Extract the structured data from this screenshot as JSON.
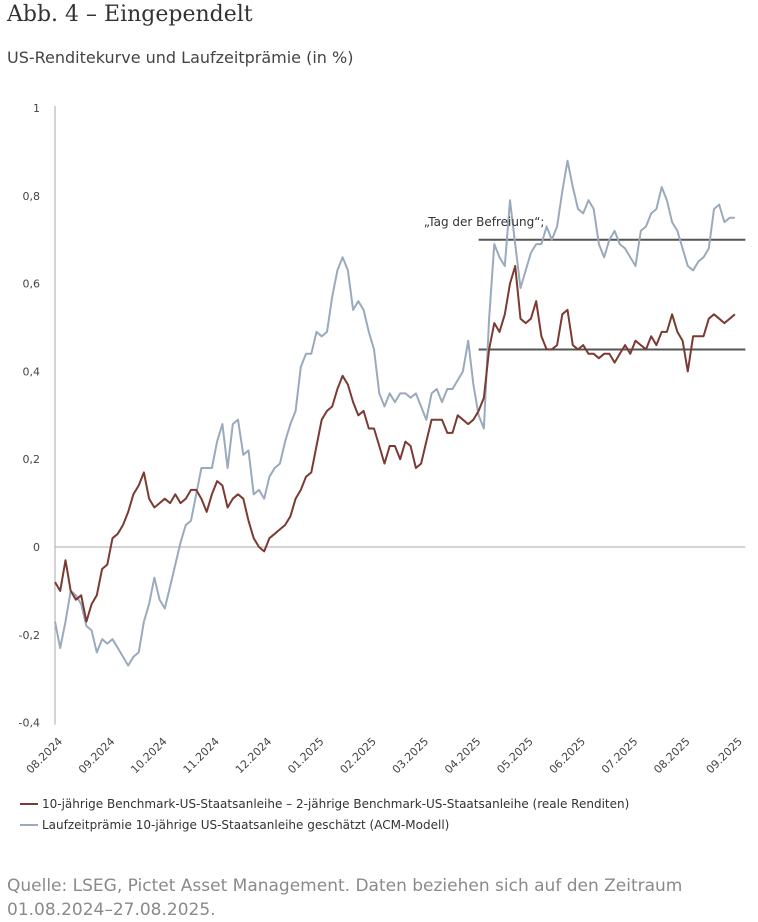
{
  "title": "Abb. 4 – Eingependelt",
  "subtitle": "US-Renditekurve und Laufzeitprämie (in %)",
  "source": "Quelle: LSEG, Pictet Asset Management. Daten beziehen sich auf den Zeitraum 01.08.2024–27.08.2025.",
  "chart_data": {
    "type": "line",
    "title": "US-Renditekurve und Laufzeitprämie (in %)",
    "xlabel": "",
    "ylabel": "",
    "ylim": [
      -0.4,
      1
    ],
    "yticks": [
      1,
      0.8,
      0.6,
      0.4,
      0.2,
      0,
      -0.2,
      -0.4
    ],
    "ytick_labels": [
      "1",
      "0,8",
      "0,6",
      "0,4",
      "0,2",
      "0",
      "-0,2",
      "-0,4"
    ],
    "x_unit": "months since 08.2024",
    "x_step": 0.1,
    "xlim": [
      0,
      13
    ],
    "xtick_labels": [
      "08.2024",
      "09.2024",
      "10.2024",
      "11.2024",
      "12.2024",
      "01.2025",
      "02.2025",
      "03.2025",
      "04.2025",
      "05.2025",
      "06.2025",
      "07.2025",
      "08.2025",
      "09.2025"
    ],
    "grid": false,
    "legend_position": "bottom",
    "series": [
      {
        "name": "10-jährige Benchmark-US-Staatsanleihe – 2-jährige Benchmark-US-Staatsanleihe (reale Renditen)",
        "color": "#7b3a32",
        "values": [
          -0.08,
          -0.1,
          -0.03,
          -0.1,
          -0.12,
          -0.11,
          -0.17,
          -0.13,
          -0.11,
          -0.05,
          -0.04,
          0.02,
          0.03,
          0.05,
          0.08,
          0.12,
          0.14,
          0.17,
          0.11,
          0.09,
          0.1,
          0.11,
          0.1,
          0.12,
          0.1,
          0.11,
          0.13,
          0.13,
          0.11,
          0.08,
          0.12,
          0.15,
          0.14,
          0.09,
          0.11,
          0.12,
          0.11,
          0.06,
          0.02,
          0.0,
          -0.01,
          0.02,
          0.03,
          0.04,
          0.05,
          0.07,
          0.11,
          0.13,
          0.16,
          0.17,
          0.23,
          0.29,
          0.31,
          0.32,
          0.36,
          0.39,
          0.37,
          0.33,
          0.3,
          0.31,
          0.27,
          0.27,
          0.23,
          0.19,
          0.23,
          0.23,
          0.2,
          0.24,
          0.23,
          0.18,
          0.19,
          0.24,
          0.29,
          0.29,
          0.29,
          0.26,
          0.26,
          0.3,
          0.29,
          0.28,
          0.29,
          0.31,
          0.34,
          0.45,
          0.51,
          0.49,
          0.53,
          0.6,
          0.64,
          0.52,
          0.51,
          0.52,
          0.56,
          0.48,
          0.45,
          0.45,
          0.46,
          0.53,
          0.54,
          0.46,
          0.45,
          0.46,
          0.44,
          0.44,
          0.43,
          0.44,
          0.44,
          0.42,
          0.44,
          0.46,
          0.44,
          0.47,
          0.46,
          0.45,
          0.48,
          0.46,
          0.49,
          0.49,
          0.53,
          0.49,
          0.47,
          0.4,
          0.48,
          0.48,
          0.48,
          0.52,
          0.53,
          0.52,
          0.51,
          0.52,
          0.53
        ]
      },
      {
        "name": "Laufzeitprämie 10-jährige US-Staatsanleihe geschätzt (ACM-Modell)",
        "color": "#9aaabd",
        "values": [
          -0.17,
          -0.23,
          -0.17,
          -0.1,
          -0.11,
          -0.13,
          -0.18,
          -0.19,
          -0.24,
          -0.21,
          -0.22,
          -0.21,
          -0.23,
          -0.25,
          -0.27,
          -0.25,
          -0.24,
          -0.17,
          -0.13,
          -0.07,
          -0.12,
          -0.14,
          -0.09,
          -0.04,
          0.01,
          0.05,
          0.06,
          0.12,
          0.18,
          0.18,
          0.18,
          0.24,
          0.28,
          0.18,
          0.28,
          0.29,
          0.21,
          0.22,
          0.12,
          0.13,
          0.11,
          0.16,
          0.18,
          0.19,
          0.24,
          0.28,
          0.31,
          0.41,
          0.44,
          0.44,
          0.49,
          0.48,
          0.49,
          0.57,
          0.63,
          0.66,
          0.63,
          0.54,
          0.56,
          0.54,
          0.49,
          0.45,
          0.35,
          0.32,
          0.35,
          0.33,
          0.35,
          0.35,
          0.34,
          0.35,
          0.32,
          0.29,
          0.35,
          0.36,
          0.33,
          0.36,
          0.36,
          0.38,
          0.4,
          0.47,
          0.37,
          0.3,
          0.27,
          0.52,
          0.69,
          0.66,
          0.64,
          0.79,
          0.69,
          0.59,
          0.63,
          0.67,
          0.69,
          0.69,
          0.73,
          0.7,
          0.73,
          0.81,
          0.88,
          0.82,
          0.77,
          0.76,
          0.79,
          0.77,
          0.69,
          0.66,
          0.7,
          0.72,
          0.69,
          0.68,
          0.66,
          0.64,
          0.72,
          0.73,
          0.76,
          0.77,
          0.82,
          0.79,
          0.74,
          0.72,
          0.68,
          0.64,
          0.63,
          0.65,
          0.66,
          0.68,
          0.77,
          0.78,
          0.74,
          0.75,
          0.75
        ]
      }
    ],
    "reference_lines": [
      {
        "value": 0.7,
        "x_from": 8.1,
        "x_to": 13.2,
        "color": "#555555"
      },
      {
        "value": 0.45,
        "x_from": 8.1,
        "x_to": 13.2,
        "color": "#555555"
      }
    ],
    "annotations": [
      {
        "text": "„Tag der Befreiung“;",
        "x": 7.05,
        "y": 0.74
      }
    ]
  }
}
